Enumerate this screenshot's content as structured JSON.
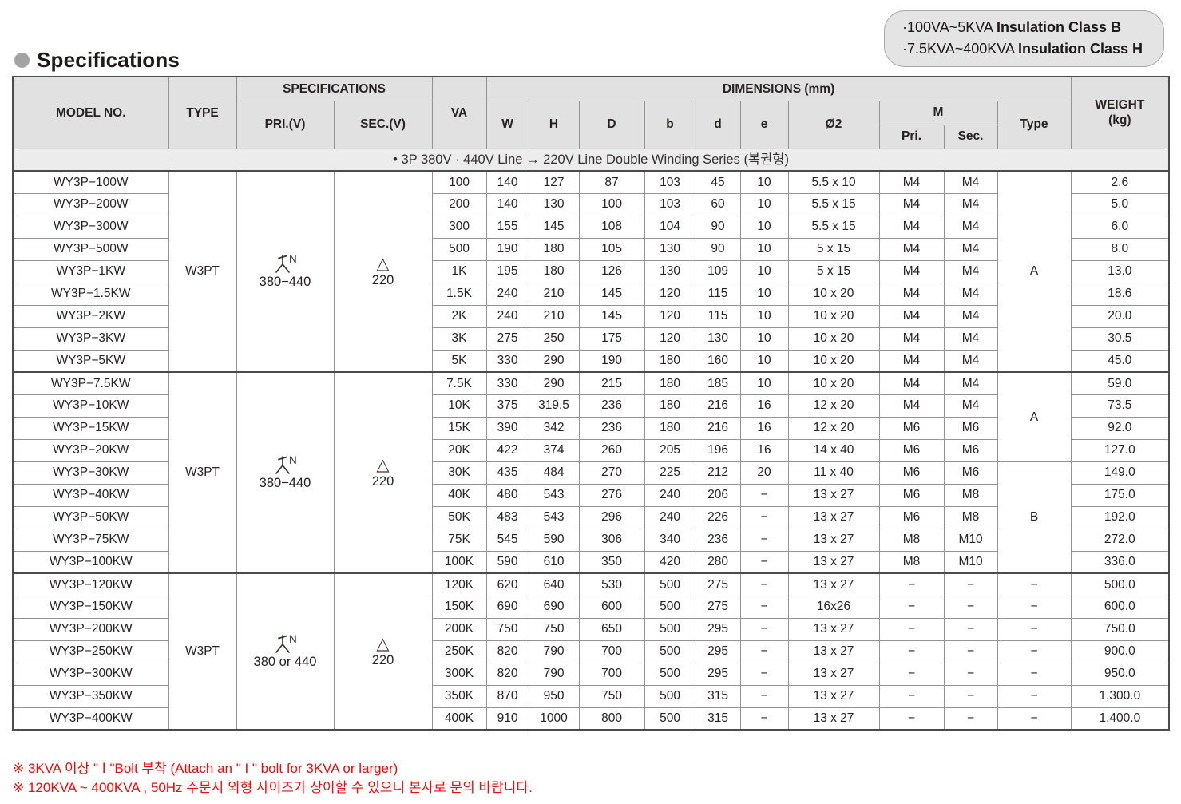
{
  "title": "Specifications",
  "badge": {
    "line1": {
      "prefix": "·100VA~5KVA ",
      "bold": "Insulation Class B"
    },
    "line2": {
      "prefix": "·7.5KVA~400KVA ",
      "bold": "Insulation Class H"
    }
  },
  "table": {
    "headers": {
      "model": "MODEL NO.",
      "type": "TYPE",
      "specifications": "SPECIFICATIONS",
      "pri": "PRI.(V)",
      "sec": "SEC.(V)",
      "va": "VA",
      "dimensions": "DIMENSIONS (mm)",
      "dims": [
        "W",
        "H",
        "D",
        "b",
        "d",
        "e",
        "Ø2"
      ],
      "m": "M",
      "m_pri": "Pri.",
      "m_sec": "Sec.",
      "type_col": "Type",
      "weight_line1": "WEIGHT",
      "weight_line2": "(kg)"
    },
    "series_note": "• 3P 380V · 440V Line → 220V Line Double Winding Series (복권형)",
    "groups": [
      {
        "type": "W3PT",
        "pri_icon": "wye-n-icon",
        "pri_label": "380−440",
        "sec_icon": "delta-icon",
        "sec_label": "220",
        "frame_type_spans": [
          {
            "label": "A",
            "rows": 9
          }
        ],
        "rows": [
          {
            "model": "WY3P−100W",
            "va": "100",
            "w": "140",
            "h": "127",
            "d": "87",
            "b": "103",
            "d2": "45",
            "e": "10",
            "o2": "5.5 x 10",
            "m_pri": "M4",
            "m_sec": "M4",
            "weight": "2.6"
          },
          {
            "model": "WY3P−200W",
            "va": "200",
            "w": "140",
            "h": "130",
            "d": "100",
            "b": "103",
            "d2": "60",
            "e": "10",
            "o2": "5.5 x 15",
            "m_pri": "M4",
            "m_sec": "M4",
            "weight": "5.0"
          },
          {
            "model": "WY3P−300W",
            "va": "300",
            "w": "155",
            "h": "145",
            "d": "108",
            "b": "104",
            "d2": "90",
            "e": "10",
            "o2": "5.5 x 15",
            "m_pri": "M4",
            "m_sec": "M4",
            "weight": "6.0"
          },
          {
            "model": "WY3P−500W",
            "va": "500",
            "w": "190",
            "h": "180",
            "d": "105",
            "b": "130",
            "d2": "90",
            "e": "10",
            "o2": "5 x 15",
            "m_pri": "M4",
            "m_sec": "M4",
            "weight": "8.0"
          },
          {
            "model": "WY3P−1KW",
            "va": "1K",
            "w": "195",
            "h": "180",
            "d": "126",
            "b": "130",
            "d2": "109",
            "e": "10",
            "o2": "5 x 15",
            "m_pri": "M4",
            "m_sec": "M4",
            "weight": "13.0"
          },
          {
            "model": "WY3P−1.5KW",
            "va": "1.5K",
            "w": "240",
            "h": "210",
            "d": "145",
            "b": "120",
            "d2": "115",
            "e": "10",
            "o2": "10 x 20",
            "m_pri": "M4",
            "m_sec": "M4",
            "weight": "18.6"
          },
          {
            "model": "WY3P−2KW",
            "va": "2K",
            "w": "240",
            "h": "210",
            "d": "145",
            "b": "120",
            "d2": "115",
            "e": "10",
            "o2": "10 x 20",
            "m_pri": "M4",
            "m_sec": "M4",
            "weight": "20.0"
          },
          {
            "model": "WY3P−3KW",
            "va": "3K",
            "w": "275",
            "h": "250",
            "d": "175",
            "b": "120",
            "d2": "130",
            "e": "10",
            "o2": "10 x 20",
            "m_pri": "M4",
            "m_sec": "M4",
            "weight": "30.5"
          },
          {
            "model": "WY3P−5KW",
            "va": "5K",
            "w": "330",
            "h": "290",
            "d": "190",
            "b": "180",
            "d2": "160",
            "e": "10",
            "o2": "10 x 20",
            "m_pri": "M4",
            "m_sec": "M4",
            "weight": "45.0"
          }
        ]
      },
      {
        "type": "W3PT",
        "pri_icon": "wye-n-icon",
        "pri_label": "380−440",
        "sec_icon": "delta-icon",
        "sec_label": "220",
        "frame_type_spans": [
          {
            "label": "A",
            "rows": 4
          },
          {
            "label": "B",
            "rows": 5
          }
        ],
        "rows": [
          {
            "model": "WY3P−7.5KW",
            "va": "7.5K",
            "w": "330",
            "h": "290",
            "d": "215",
            "b": "180",
            "d2": "185",
            "e": "10",
            "o2": "10 x 20",
            "m_pri": "M4",
            "m_sec": "M4",
            "weight": "59.0"
          },
          {
            "model": "WY3P−10KW",
            "va": "10K",
            "w": "375",
            "h": "319.5",
            "d": "236",
            "b": "180",
            "d2": "216",
            "e": "16",
            "o2": "12 x 20",
            "m_pri": "M4",
            "m_sec": "M4",
            "weight": "73.5"
          },
          {
            "model": "WY3P−15KW",
            "va": "15K",
            "w": "390",
            "h": "342",
            "d": "236",
            "b": "180",
            "d2": "216",
            "e": "16",
            "o2": "12 x 20",
            "m_pri": "M6",
            "m_sec": "M6",
            "weight": "92.0"
          },
          {
            "model": "WY3P−20KW",
            "va": "20K",
            "w": "422",
            "h": "374",
            "d": "260",
            "b": "205",
            "d2": "196",
            "e": "16",
            "o2": "14 x 40",
            "m_pri": "M6",
            "m_sec": "M6",
            "weight": "127.0"
          },
          {
            "model": "WY3P−30KW",
            "va": "30K",
            "w": "435",
            "h": "484",
            "d": "270",
            "b": "225",
            "d2": "212",
            "e": "20",
            "o2": "11 x 40",
            "m_pri": "M6",
            "m_sec": "M6",
            "weight": "149.0"
          },
          {
            "model": "WY3P−40KW",
            "va": "40K",
            "w": "480",
            "h": "543",
            "d": "276",
            "b": "240",
            "d2": "206",
            "e": "−",
            "o2": "13 x 27",
            "m_pri": "M6",
            "m_sec": "M8",
            "weight": "175.0"
          },
          {
            "model": "WY3P−50KW",
            "va": "50K",
            "w": "483",
            "h": "543",
            "d": "296",
            "b": "240",
            "d2": "226",
            "e": "−",
            "o2": "13 x 27",
            "m_pri": "M6",
            "m_sec": "M8",
            "weight": "192.0"
          },
          {
            "model": "WY3P−75KW",
            "va": "75K",
            "w": "545",
            "h": "590",
            "d": "306",
            "b": "340",
            "d2": "236",
            "e": "−",
            "o2": "13 x 27",
            "m_pri": "M8",
            "m_sec": "M10",
            "weight": "272.0"
          },
          {
            "model": "WY3P−100KW",
            "va": "100K",
            "w": "590",
            "h": "610",
            "d": "350",
            "b": "420",
            "d2": "280",
            "e": "−",
            "o2": "13 x 27",
            "m_pri": "M8",
            "m_sec": "M10",
            "weight": "336.0"
          }
        ]
      },
      {
        "type": "W3PT",
        "pri_icon": "wye-n-icon",
        "pri_label": "380 or 440",
        "sec_icon": "delta-icon",
        "sec_label": "220",
        "frame_type_spans": [
          {
            "label": "−",
            "rows": 1
          },
          {
            "label": "−",
            "rows": 1
          },
          {
            "label": "−",
            "rows": 1
          },
          {
            "label": "−",
            "rows": 1
          },
          {
            "label": "−",
            "rows": 1
          },
          {
            "label": "−",
            "rows": 1
          },
          {
            "label": "−",
            "rows": 1
          }
        ],
        "rows": [
          {
            "model": "WY3P−120KW",
            "va": "120K",
            "w": "620",
            "h": "640",
            "d": "530",
            "b": "500",
            "d2": "275",
            "e": "−",
            "o2": "13 x 27",
            "m_pri": "−",
            "m_sec": "−",
            "weight": "500.0"
          },
          {
            "model": "WY3P−150KW",
            "va": "150K",
            "w": "690",
            "h": "690",
            "d": "600",
            "b": "500",
            "d2": "275",
            "e": "−",
            "o2": "16x26",
            "m_pri": "−",
            "m_sec": "−",
            "weight": "600.0"
          },
          {
            "model": "WY3P−200KW",
            "va": "200K",
            "w": "750",
            "h": "750",
            "d": "650",
            "b": "500",
            "d2": "295",
            "e": "−",
            "o2": "13 x 27",
            "m_pri": "−",
            "m_sec": "−",
            "weight": "750.0"
          },
          {
            "model": "WY3P−250KW",
            "va": "250K",
            "w": "820",
            "h": "790",
            "d": "700",
            "b": "500",
            "d2": "295",
            "e": "−",
            "o2": "13 x 27",
            "m_pri": "−",
            "m_sec": "−",
            "weight": "900.0"
          },
          {
            "model": "WY3P−300KW",
            "va": "300K",
            "w": "820",
            "h": "790",
            "d": "700",
            "b": "500",
            "d2": "295",
            "e": "−",
            "o2": "13 x 27",
            "m_pri": "−",
            "m_sec": "−",
            "weight": "950.0"
          },
          {
            "model": "WY3P−350KW",
            "va": "350K",
            "w": "870",
            "h": "950",
            "d": "750",
            "b": "500",
            "d2": "315",
            "e": "−",
            "o2": "13 x 27",
            "m_pri": "−",
            "m_sec": "−",
            "weight": "1,300.0"
          },
          {
            "model": "WY3P−400KW",
            "va": "400K",
            "w": "910",
            "h": "1000",
            "d": "800",
            "b": "500",
            "d2": "315",
            "e": "−",
            "o2": "13 x 27",
            "m_pri": "−",
            "m_sec": "−",
            "weight": "1,400.0"
          }
        ]
      }
    ]
  },
  "notes": [
    "※ 3KVA 이상 \" Ⅰ \"Bolt 부착 (Attach an \" I \" bolt for 3KVA or larger)",
    "※ 120KVA ~ 400KVA , 50Hz 주문시 외형 사이즈가 상이할 수 있으니 본사로 문의 바랍니다."
  ]
}
